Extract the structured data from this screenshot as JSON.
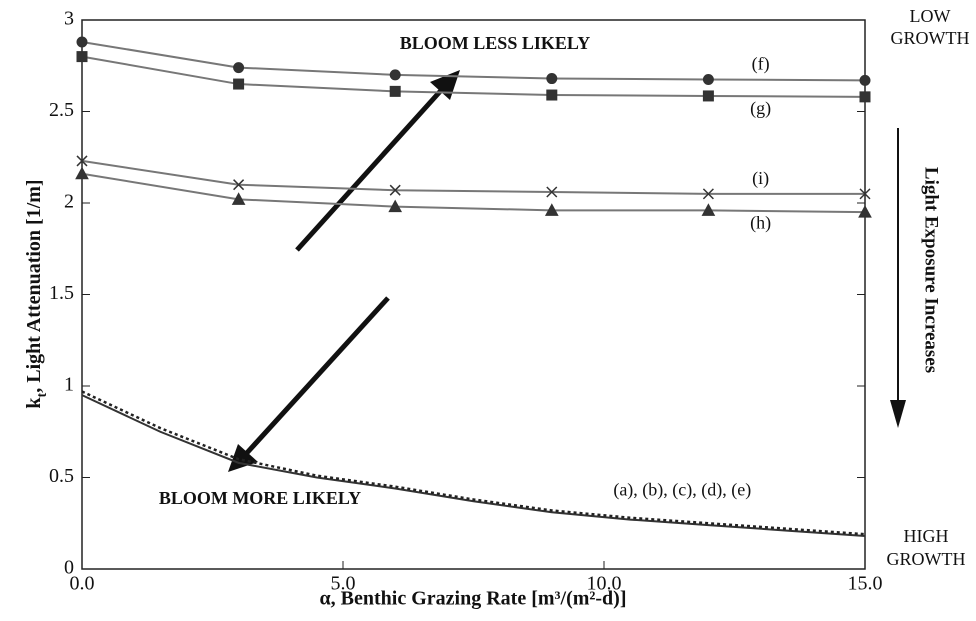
{
  "chart_data": {
    "type": "line",
    "x_label": "α, Benthic Grazing Rate [m³/(m²-d)]",
    "y_label": {
      "main": "k",
      "sub": "t",
      "rest": ", Light Attenuation [1/m]"
    },
    "xlim": [
      0,
      15
    ],
    "ylim": [
      0,
      3
    ],
    "xticks": [
      {
        "value": 0,
        "label": "0.0"
      },
      {
        "value": 5,
        "label": "5.0"
      },
      {
        "value": 10,
        "label": "10.0"
      },
      {
        "value": 15,
        "label": "15.0"
      }
    ],
    "yticks": [
      0,
      0.5,
      1,
      1.5,
      2,
      2.5,
      3
    ],
    "series": [
      {
        "name": "(f)",
        "color": "#777777",
        "marker": "circle",
        "x": [
          0,
          3,
          6,
          9,
          12,
          15
        ],
        "values": [
          2.88,
          2.74,
          2.7,
          2.68,
          2.675,
          2.67
        ]
      },
      {
        "name": "(g)",
        "color": "#777777",
        "marker": "square",
        "x": [
          0,
          3,
          6,
          9,
          12,
          15
        ],
        "values": [
          2.8,
          2.65,
          2.61,
          2.59,
          2.585,
          2.58
        ]
      },
      {
        "name": "(i)",
        "color": "#777777",
        "marker": "x",
        "x": [
          0,
          3,
          6,
          9,
          12,
          15
        ],
        "values": [
          2.23,
          2.1,
          2.07,
          2.06,
          2.05,
          2.05
        ]
      },
      {
        "name": "(h)",
        "color": "#777777",
        "marker": "triangle",
        "x": [
          0,
          3,
          6,
          9,
          12,
          15
        ],
        "values": [
          2.16,
          2.02,
          1.98,
          1.96,
          1.96,
          1.95
        ]
      },
      {
        "name": "(a), (b), (c), (d), (e)",
        "color": "#333333",
        "x": [
          0,
          1.5,
          3,
          4.5,
          6,
          7.5,
          9,
          10.5,
          12,
          13.5,
          15
        ],
        "values": [
          0.95,
          0.75,
          0.58,
          0.5,
          0.44,
          0.37,
          0.31,
          0.27,
          0.24,
          0.21,
          0.18
        ]
      },
      {
        "color": "#222222",
        "dash": true,
        "x": [
          0,
          1.5,
          3,
          4.5,
          6,
          7.5,
          9,
          10.5,
          12,
          13.5,
          15
        ],
        "values": [
          0.97,
          0.77,
          0.6,
          0.51,
          0.45,
          0.38,
          0.32,
          0.28,
          0.25,
          0.22,
          0.19
        ]
      }
    ],
    "annotations": {
      "up": "BLOOM LESS LIKELY",
      "down": "BLOOM MORE LIKELY",
      "low": [
        "LOW",
        "GROWTH"
      ],
      "high": [
        "HIGH",
        "GROWTH"
      ],
      "side": "Light Exposure Increases"
    }
  }
}
